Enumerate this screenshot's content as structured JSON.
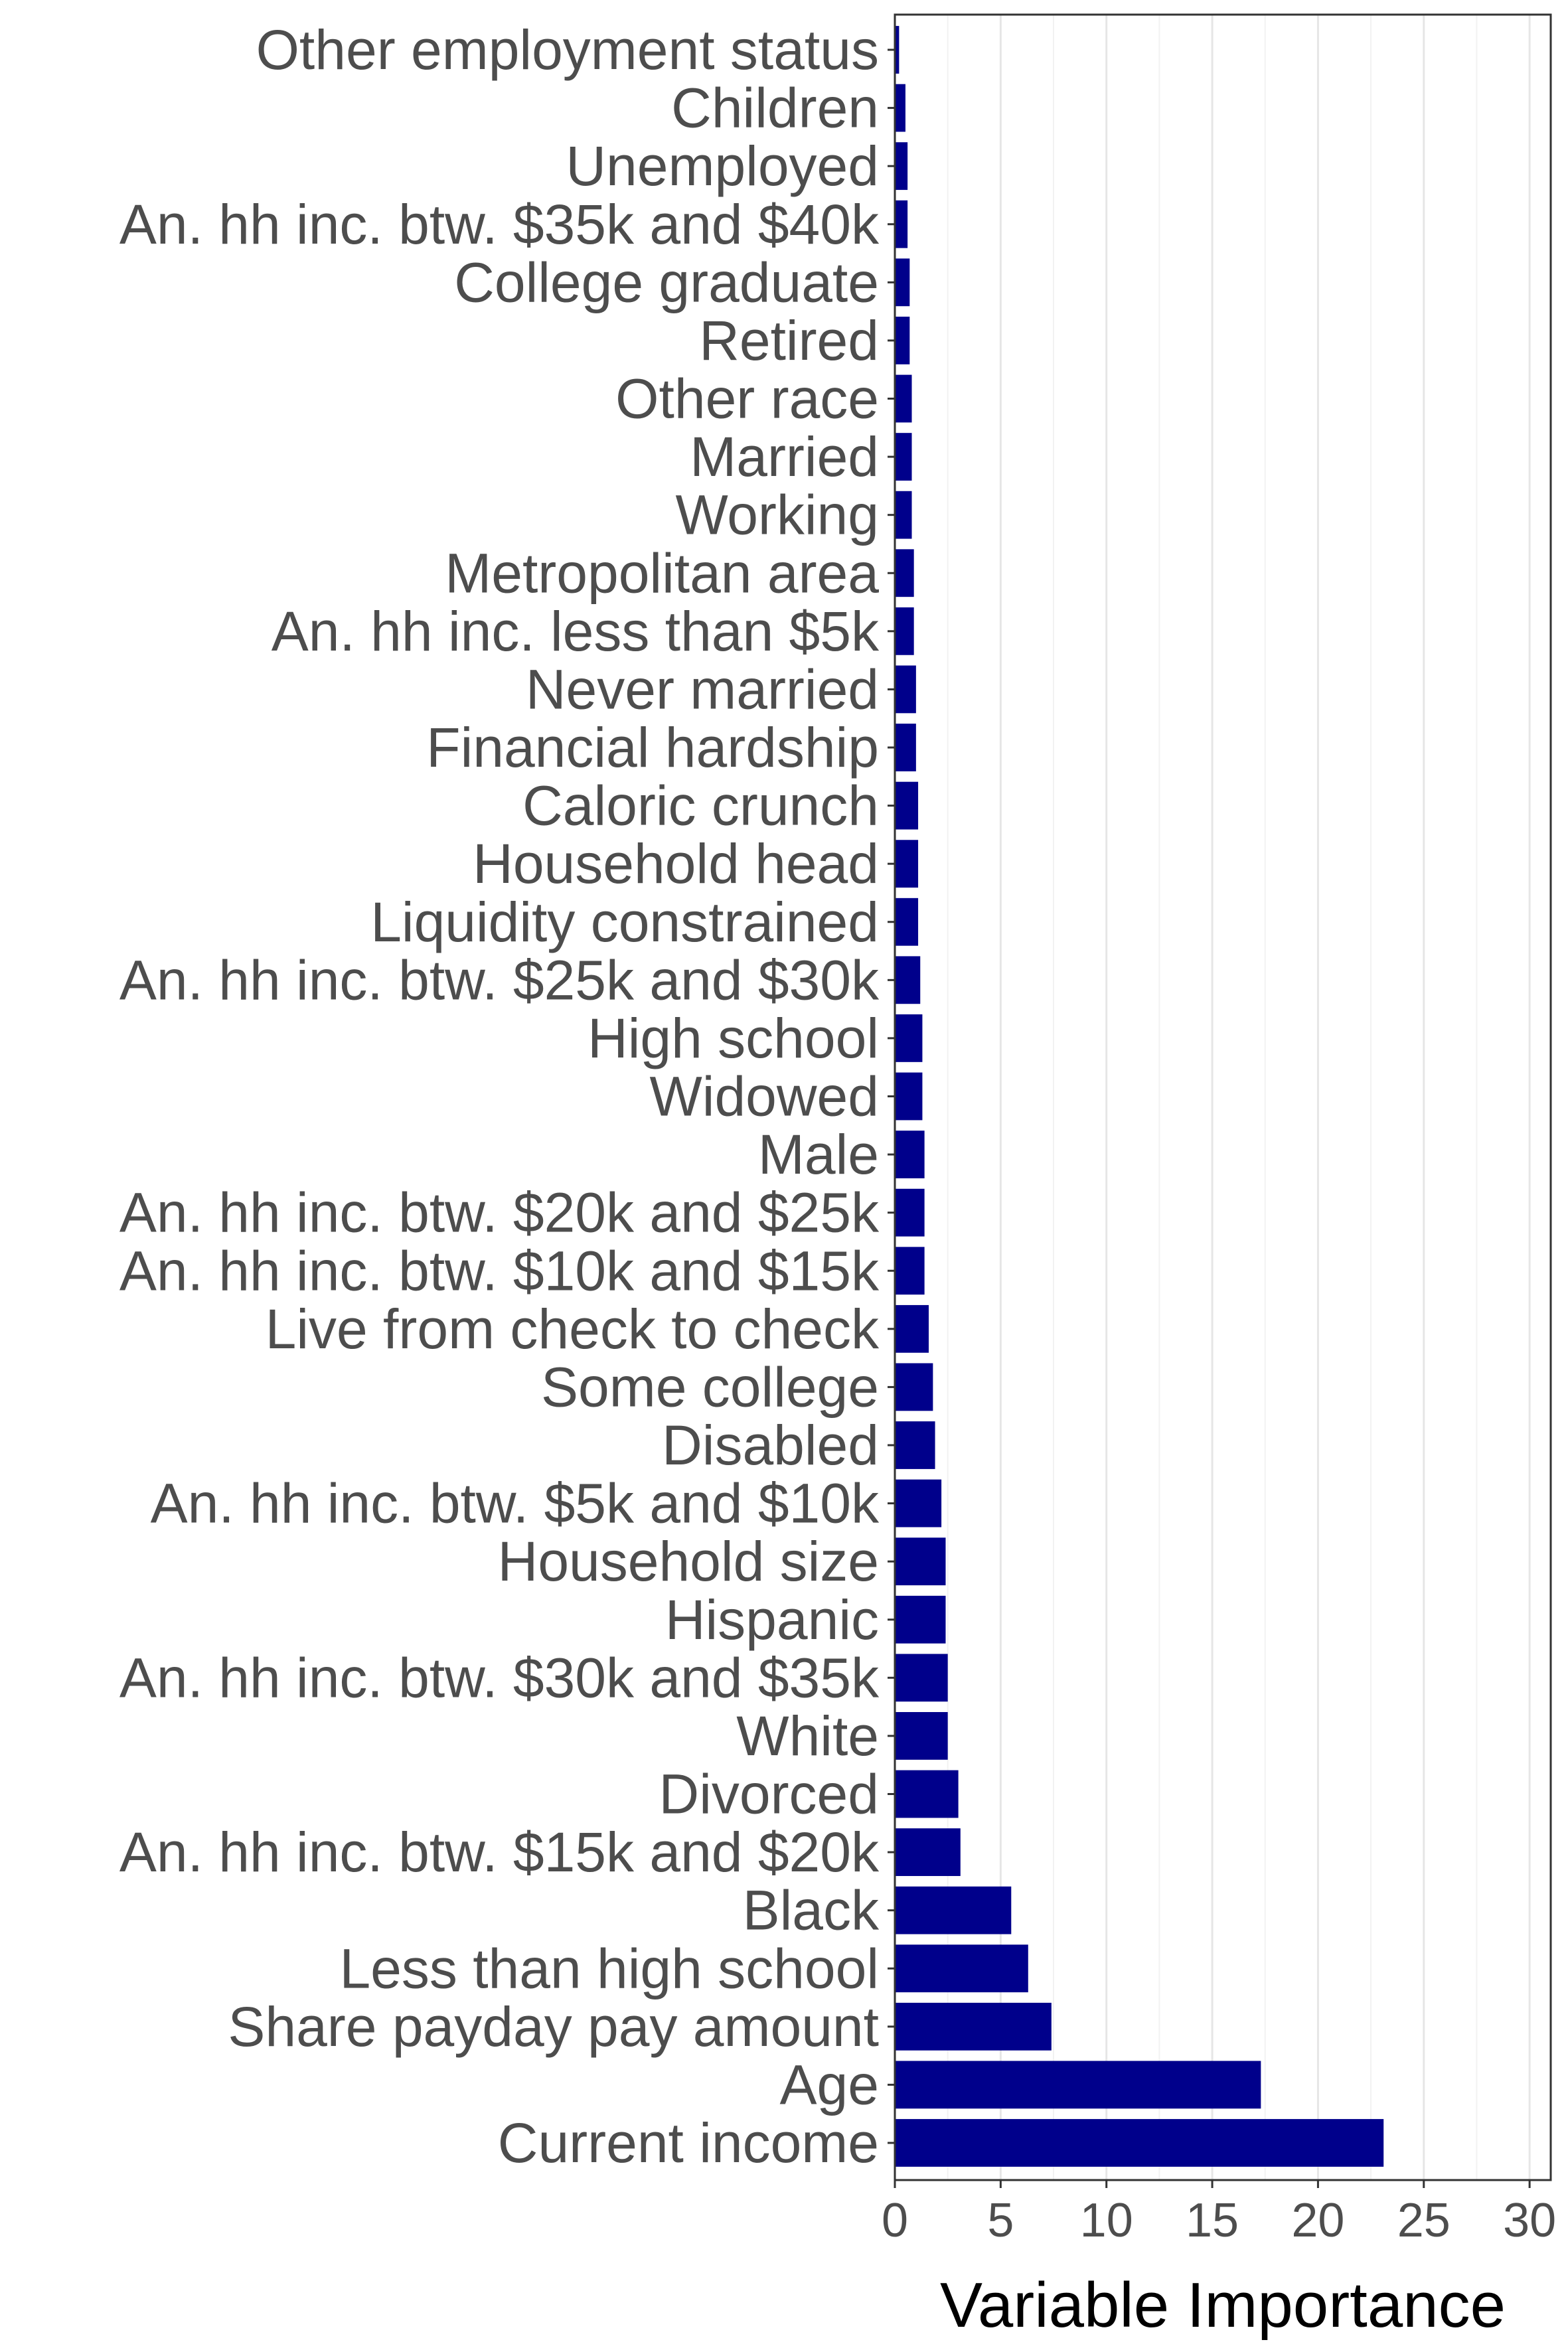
{
  "chart_data": {
    "type": "bar",
    "orientation": "horizontal",
    "xlabel": "Variable Importance",
    "ylabel": "",
    "xlim": [
      0,
      31
    ],
    "x_ticks": [
      0,
      5,
      10,
      15,
      20,
      25,
      30
    ],
    "grid": true,
    "bar_color": "#00008b",
    "categories": [
      "Other employment status",
      "Children",
      "Unemployed",
      "An. hh inc. btw. $35k and $40k",
      "College graduate",
      "Retired",
      "Other race",
      "Married",
      "Working",
      "Metropolitan area",
      "An. hh inc. less than $5k",
      "Never married",
      "Financial hardship",
      "Caloric crunch",
      "Household head",
      "Liquidity constrained",
      "An. hh inc. btw. $25k and $30k",
      "High school",
      "Widowed",
      "Male",
      "An. hh inc. btw. $20k and $25k",
      "An. hh inc. btw. $10k and $15k",
      "Live from check to check",
      "Some college",
      "Disabled",
      "An. hh inc. btw. $5k and $10k",
      "Household size",
      "Hispanic",
      "An. hh inc. btw. $30k and $35k",
      "White",
      "Divorced",
      "An. hh inc. btw. $15k and $20k",
      "Black",
      "Less than high school",
      "Share payday pay amount",
      "Age",
      "Current income"
    ],
    "values": [
      0.2,
      0.5,
      0.6,
      0.6,
      0.7,
      0.7,
      0.8,
      0.8,
      0.8,
      0.9,
      0.9,
      1.0,
      1.0,
      1.1,
      1.1,
      1.1,
      1.2,
      1.3,
      1.3,
      1.4,
      1.4,
      1.4,
      1.6,
      1.8,
      1.9,
      2.2,
      2.4,
      2.4,
      2.5,
      2.5,
      3.0,
      3.1,
      5.5,
      6.3,
      7.4,
      17.3,
      23.1
    ]
  }
}
